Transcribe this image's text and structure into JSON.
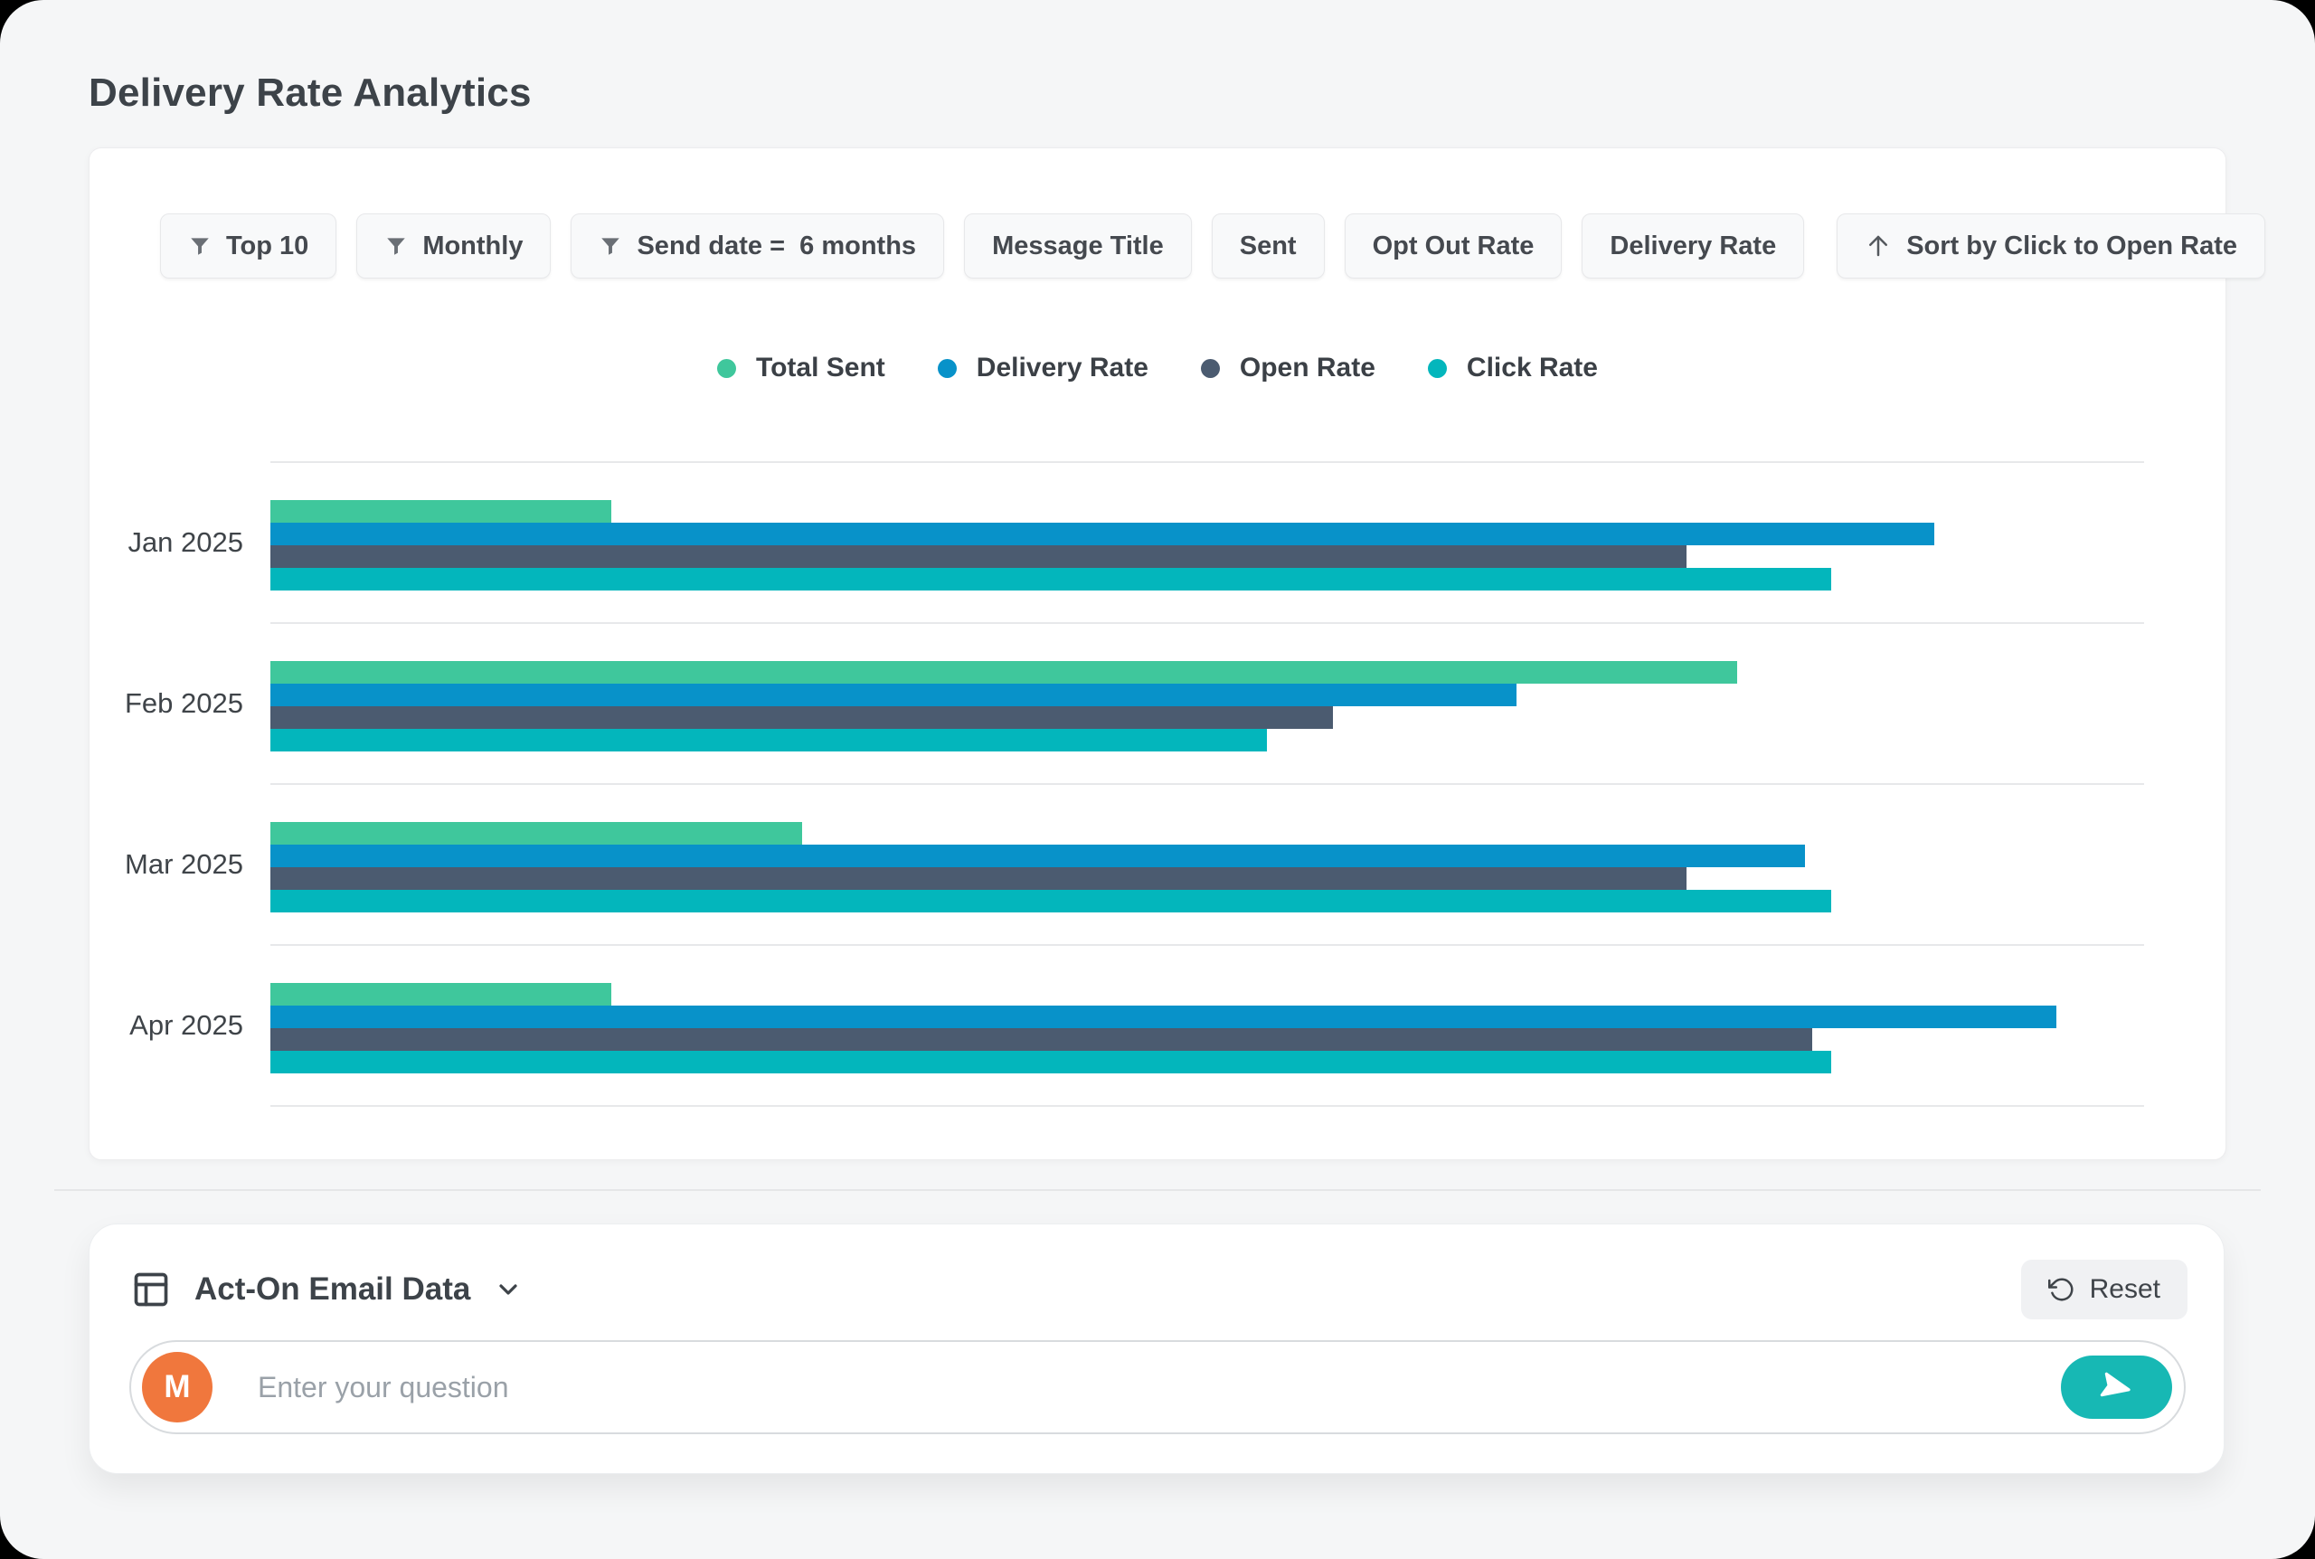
{
  "page": {
    "title": "Delivery Rate Analytics"
  },
  "filters": {
    "chips": [
      {
        "label": "Top 10",
        "icon": "funnel"
      },
      {
        "label": "Monthly",
        "icon": "funnel"
      },
      {
        "label": "Send date =  6 months",
        "icon": "funnel"
      },
      {
        "label": "Message Title",
        "icon": "none"
      },
      {
        "label": "Sent",
        "icon": "none"
      },
      {
        "label": "Opt Out Rate",
        "icon": "none"
      },
      {
        "label": "Delivery Rate",
        "icon": "none"
      },
      {
        "label": "Sort by Click to Open Rate",
        "icon": "arrow-up",
        "extra_gap": true
      }
    ]
  },
  "chart_data": {
    "type": "bar",
    "orientation": "horizontal",
    "title": "Delivery Rate Analytics",
    "legend_position": "top-center",
    "grid": "horizontal row separator lines only, no numeric axis shown",
    "categories": [
      "Jan 2025",
      "Feb 2025",
      "Mar 2025",
      "Apr 2025"
    ],
    "series": [
      {
        "name": "Total Sent",
        "color": "#3fc79c",
        "values_pct": [
          18.2,
          78.3,
          28.4,
          18.2
        ]
      },
      {
        "name": "Delivery Rate",
        "color": "#0892c9",
        "values_pct": [
          88.8,
          66.5,
          81.9,
          95.3
        ]
      },
      {
        "name": "Open Rate",
        "color": "#4b5b70",
        "values_pct": [
          75.6,
          56.7,
          75.6,
          82.3
        ]
      },
      {
        "name": "Click Rate",
        "color": "#03b6bc",
        "values_pct": [
          83.3,
          53.2,
          83.3,
          83.3
        ]
      }
    ],
    "value_note": "bar lengths expressed as percent of plot width; chart displays no numeric tick labels"
  },
  "chat": {
    "source_label": "Act-On Email Data",
    "reset_label": "Reset",
    "input_placeholder": "Enter your question",
    "avatar_initial": "M"
  },
  "colors": {
    "page_background": "#f5f6f7",
    "card_background": "#ffffff",
    "chip_background": "#f8f9fa",
    "gridline": "#e7e8ea",
    "title_text": "#3d4349",
    "chip_text": "#45494f",
    "placeholder_text": "#9aa1a8",
    "avatar_background": "#f0773d",
    "send_button": "#17b8b4",
    "bar_green": "#3fc79c",
    "bar_blue": "#0892c9",
    "bar_slate": "#4b5b70",
    "bar_teal": "#03b6bc"
  }
}
